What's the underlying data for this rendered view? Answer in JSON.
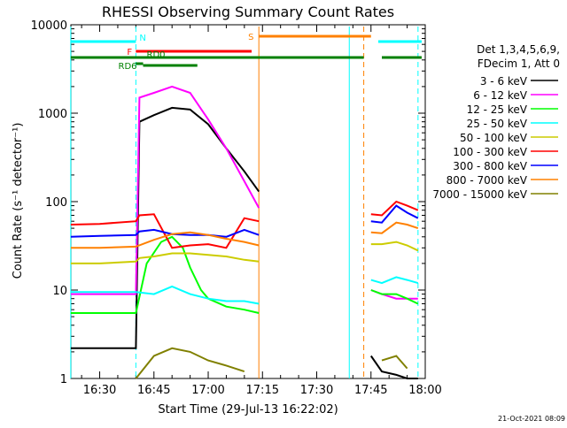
{
  "chart_data": {
    "type": "line",
    "title": "RHESSI Observing Summary Count Rates",
    "xlabel": "Start Time (29-Jul-13 16:22:02)",
    "ylabel": "Count Rate (s⁻¹ detector⁻¹)",
    "y_scale": "log",
    "ylim": [
      1,
      10000
    ],
    "xlim": [
      "16:22:02",
      "18:00:00"
    ],
    "x_ticks": [
      "16:30",
      "16:45",
      "17:00",
      "17:15",
      "17:30",
      "17:45",
      "18:00"
    ],
    "y_ticks": [
      "1",
      "10",
      "100",
      "1000",
      "10000"
    ],
    "grid": false,
    "legend_position": "right",
    "legend_header": [
      "Det 1,3,4,5,6,9,",
      "FDecim 1, Att 0"
    ],
    "timestamp": "21-Oct-2021 08:09",
    "series": [
      {
        "name": "3 - 6 keV",
        "color": "#000000",
        "x": [
          "16:22",
          "16:30",
          "16:40",
          "16:41",
          "16:45",
          "16:50",
          "16:55",
          "17:00",
          "17:05",
          "17:10",
          "17:14",
          "17:44",
          "17:45",
          "17:48",
          "17:52",
          "17:55",
          "17:58"
        ],
        "y": [
          2.2,
          2.2,
          2.2,
          800,
          950,
          1150,
          1100,
          750,
          400,
          220,
          130,
          null,
          1.8,
          1.2,
          1.1,
          1.0,
          1.0
        ]
      },
      {
        "name": "6 - 12 keV",
        "color": "#ff00ff",
        "x": [
          "16:22",
          "16:30",
          "16:40",
          "16:41",
          "16:45",
          "16:50",
          "16:55",
          "17:00",
          "17:05",
          "17:10",
          "17:14",
          "17:44",
          "17:45",
          "17:48",
          "17:52",
          "17:55",
          "17:58"
        ],
        "y": [
          9,
          9,
          9,
          1500,
          1700,
          2000,
          1700,
          850,
          400,
          170,
          85,
          null,
          10,
          9,
          8,
          8,
          8
        ]
      },
      {
        "name": "12 - 25 keV",
        "color": "#00ff00",
        "x": [
          "16:22",
          "16:30",
          "16:40",
          "16:43",
          "16:47",
          "16:50",
          "16:53",
          "16:55",
          "16:58",
          "17:00",
          "17:05",
          "17:10",
          "17:14",
          "17:44",
          "17:45",
          "17:48",
          "17:52",
          "17:55",
          "17:58"
        ],
        "y": [
          5.5,
          5.5,
          5.5,
          20,
          35,
          40,
          30,
          18,
          10,
          8,
          6.5,
          6,
          5.5,
          null,
          10,
          9,
          9,
          8,
          7
        ]
      },
      {
        "name": "25 - 50 keV",
        "color": "#00ffff",
        "x": [
          "16:22",
          "16:30",
          "16:40",
          "16:45",
          "16:50",
          "16:55",
          "17:00",
          "17:05",
          "17:10",
          "17:14",
          "17:44",
          "17:45",
          "17:48",
          "17:52",
          "17:55",
          "17:58"
        ],
        "y": [
          9.5,
          9.5,
          9.5,
          9,
          11,
          9,
          8,
          7.5,
          7.5,
          7,
          null,
          13,
          12,
          14,
          13,
          12
        ]
      },
      {
        "name": "50 - 100 keV",
        "color": "#cccc00",
        "x": [
          "16:22",
          "16:30",
          "16:40",
          "16:41",
          "16:45",
          "16:50",
          "16:55",
          "17:00",
          "17:05",
          "17:10",
          "17:14",
          "17:44",
          "17:45",
          "17:48",
          "17:52",
          "17:55",
          "17:58"
        ],
        "y": [
          20,
          20,
          21,
          23,
          24,
          26,
          26,
          25,
          24,
          22,
          21,
          null,
          33,
          33,
          35,
          32,
          28
        ]
      },
      {
        "name": "100 - 300 keV",
        "color": "#ff0000",
        "x": [
          "16:22",
          "16:30",
          "16:40",
          "16:41",
          "16:45",
          "16:50",
          "16:55",
          "17:00",
          "17:05",
          "17:10",
          "17:14",
          "17:44",
          "17:45",
          "17:48",
          "17:52",
          "17:55",
          "17:58"
        ],
        "y": [
          55,
          56,
          60,
          70,
          72,
          30,
          32,
          33,
          30,
          65,
          60,
          null,
          72,
          70,
          100,
          90,
          80
        ]
      },
      {
        "name": "300 - 800 keV",
        "color": "#0000ff",
        "x": [
          "16:22",
          "16:30",
          "16:40",
          "16:41",
          "16:45",
          "16:50",
          "16:55",
          "17:00",
          "17:05",
          "17:10",
          "17:14",
          "17:44",
          "17:45",
          "17:48",
          "17:52",
          "17:55",
          "17:58"
        ],
        "y": [
          40,
          41,
          42,
          46,
          48,
          43,
          42,
          42,
          40,
          48,
          42,
          null,
          60,
          58,
          90,
          75,
          65
        ]
      },
      {
        "name": "800 - 7000 keV",
        "color": "#ff8000",
        "x": [
          "16:22",
          "16:30",
          "16:40",
          "16:45",
          "16:50",
          "16:55",
          "17:00",
          "17:05",
          "17:10",
          "17:14",
          "17:44",
          "17:45",
          "17:48",
          "17:52",
          "17:55",
          "17:58"
        ],
        "y": [
          30,
          30,
          31,
          37,
          43,
          45,
          42,
          38,
          35,
          32,
          null,
          45,
          44,
          58,
          55,
          50
        ]
      },
      {
        "name": "7000 - 15000 keV",
        "color": "#808000",
        "x": [
          "16:22",
          "16:30",
          "16:40",
          "16:45",
          "16:50",
          "16:55",
          "17:00",
          "17:05",
          "17:10",
          "17:14",
          "17:44",
          "17:45",
          "17:48",
          "17:52",
          "17:55",
          "17:58"
        ],
        "y": [
          null,
          null,
          1,
          1.8,
          2.2,
          2.0,
          1.6,
          1.4,
          1.2,
          null,
          null,
          null,
          1.6,
          1.8,
          1.3,
          null
        ]
      }
    ],
    "annotations": {
      "bars": [
        {
          "label": "N",
          "color": "#00ffff",
          "segments": [
            [
              "16:22",
              "16:40"
            ],
            [
              "17:47",
              "17:59"
            ]
          ]
        },
        {
          "label": "S",
          "color": "#ff8000",
          "segments": [
            [
              "17:14",
              "17:45"
            ]
          ]
        },
        {
          "label": "F",
          "color": "#ff0000",
          "segments": [
            [
              "16:40",
              "17:12"
            ]
          ]
        },
        {
          "label": "",
          "color": "#008000",
          "segments": [
            [
              "16:22",
              "17:43"
            ],
            [
              "17:48",
              "17:59"
            ]
          ]
        },
        {
          "label": "RD0",
          "color": "#008000",
          "segments": [
            [
              "16:40",
              "16:42"
            ]
          ]
        },
        {
          "label": "RD6",
          "color": "#008000",
          "segments": [
            [
              "16:42",
              "16:57"
            ]
          ]
        }
      ],
      "vertical_lines": [
        {
          "x": "16:22",
          "color": "#00ffff",
          "style": "solid"
        },
        {
          "x": "16:40",
          "color": "#00ffff",
          "style": "dashed"
        },
        {
          "x": "17:14",
          "color": "#ff8000",
          "style": "solid"
        },
        {
          "x": "17:39",
          "color": "#00ffff",
          "style": "solid"
        },
        {
          "x": "17:43",
          "color": "#ff8000",
          "style": "dashed"
        },
        {
          "x": "17:58",
          "color": "#00ffff",
          "style": "dashed"
        }
      ]
    }
  }
}
